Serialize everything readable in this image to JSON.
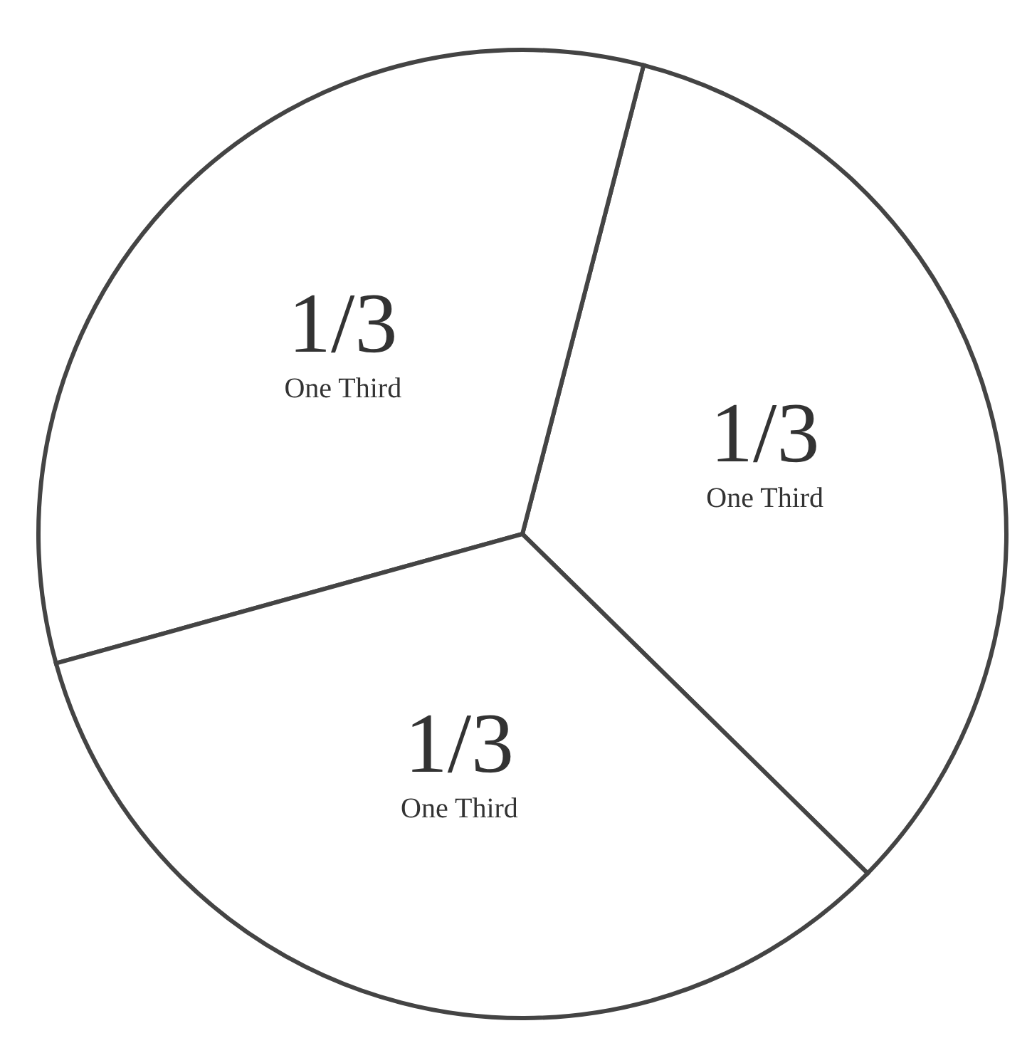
{
  "chart_data": {
    "type": "pie",
    "categories": [
      "One Third",
      "One Third",
      "One Third"
    ],
    "values": [
      0.3333,
      0.3333,
      0.3333
    ],
    "value_labels": [
      "1/3",
      "1/3",
      "1/3"
    ],
    "colors": [
      "#ffffff",
      "#ffffff",
      "#ffffff"
    ],
    "legend": false
  }
}
